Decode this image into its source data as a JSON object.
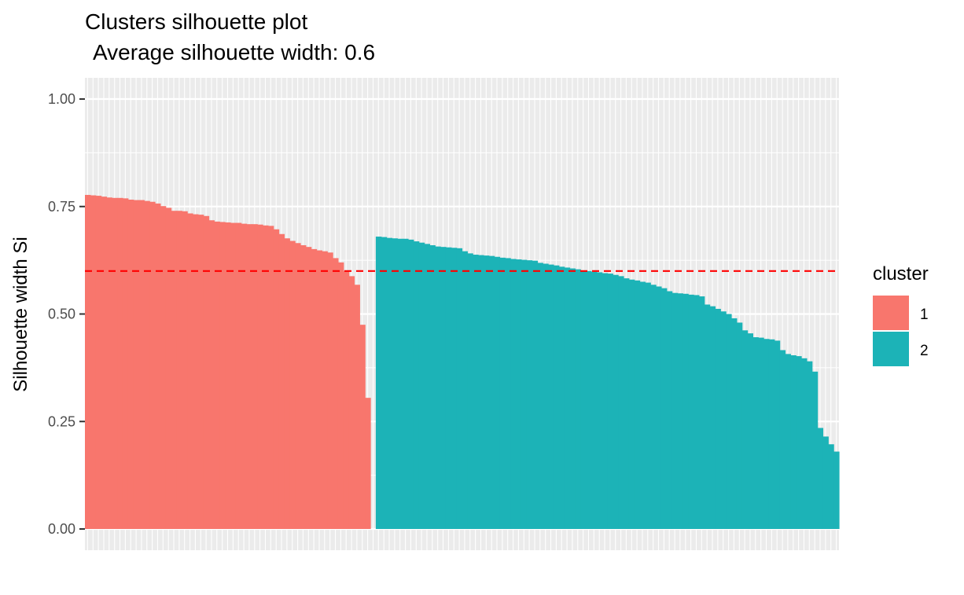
{
  "chart_data": {
    "type": "bar",
    "title": "Clusters silhouette plot",
    "subtitle": "Average silhouette width: 0.6",
    "xlabel": "",
    "ylabel": "Silhouette width Si",
    "ylim": [
      0,
      1.05
    ],
    "yticks": [
      "0.00",
      "0.25",
      "0.50",
      "0.75",
      "1.00"
    ],
    "grid": true,
    "background": "#ebebeb",
    "reference_line": {
      "value": 0.6,
      "style": "dashed",
      "color": "#ff0000"
    },
    "legend": {
      "title": "cluster",
      "placement": "right",
      "entries": [
        {
          "label": "1",
          "color": "#f8766d"
        },
        {
          "label": "2",
          "color": "#1cb3b7"
        }
      ]
    },
    "series": [
      {
        "name": "1",
        "color": "#f8766d",
        "values": [
          0.777,
          0.776,
          0.775,
          0.773,
          0.771,
          0.77,
          0.77,
          0.769,
          0.766,
          0.765,
          0.765,
          0.763,
          0.761,
          0.757,
          0.751,
          0.747,
          0.74,
          0.74,
          0.739,
          0.734,
          0.732,
          0.731,
          0.728,
          0.718,
          0.715,
          0.714,
          0.713,
          0.712,
          0.712,
          0.71,
          0.709,
          0.709,
          0.708,
          0.706,
          0.705,
          0.697,
          0.686,
          0.676,
          0.67,
          0.665,
          0.66,
          0.656,
          0.651,
          0.648,
          0.646,
          0.643,
          0.63,
          0.62,
          0.6,
          0.588,
          0.568,
          0.475,
          0.305,
          0.0
        ]
      },
      {
        "name": "2",
        "color": "#1cb3b7",
        "values": [
          0.68,
          0.679,
          0.677,
          0.676,
          0.675,
          0.675,
          0.673,
          0.669,
          0.666,
          0.663,
          0.66,
          0.657,
          0.656,
          0.655,
          0.654,
          0.653,
          0.646,
          0.641,
          0.638,
          0.637,
          0.636,
          0.635,
          0.633,
          0.631,
          0.63,
          0.628,
          0.627,
          0.626,
          0.625,
          0.624,
          0.619,
          0.617,
          0.615,
          0.613,
          0.61,
          0.608,
          0.606,
          0.604,
          0.6,
          0.6,
          0.598,
          0.597,
          0.595,
          0.594,
          0.591,
          0.588,
          0.583,
          0.58,
          0.578,
          0.575,
          0.573,
          0.568,
          0.564,
          0.56,
          0.553,
          0.549,
          0.548,
          0.547,
          0.545,
          0.544,
          0.541,
          0.522,
          0.518,
          0.512,
          0.506,
          0.5,
          0.49,
          0.48,
          0.462,
          0.455,
          0.446,
          0.445,
          0.442,
          0.441,
          0.438,
          0.416,
          0.407,
          0.404,
          0.402,
          0.397,
          0.39,
          0.366,
          0.235,
          0.215,
          0.197,
          0.18
        ]
      }
    ]
  }
}
